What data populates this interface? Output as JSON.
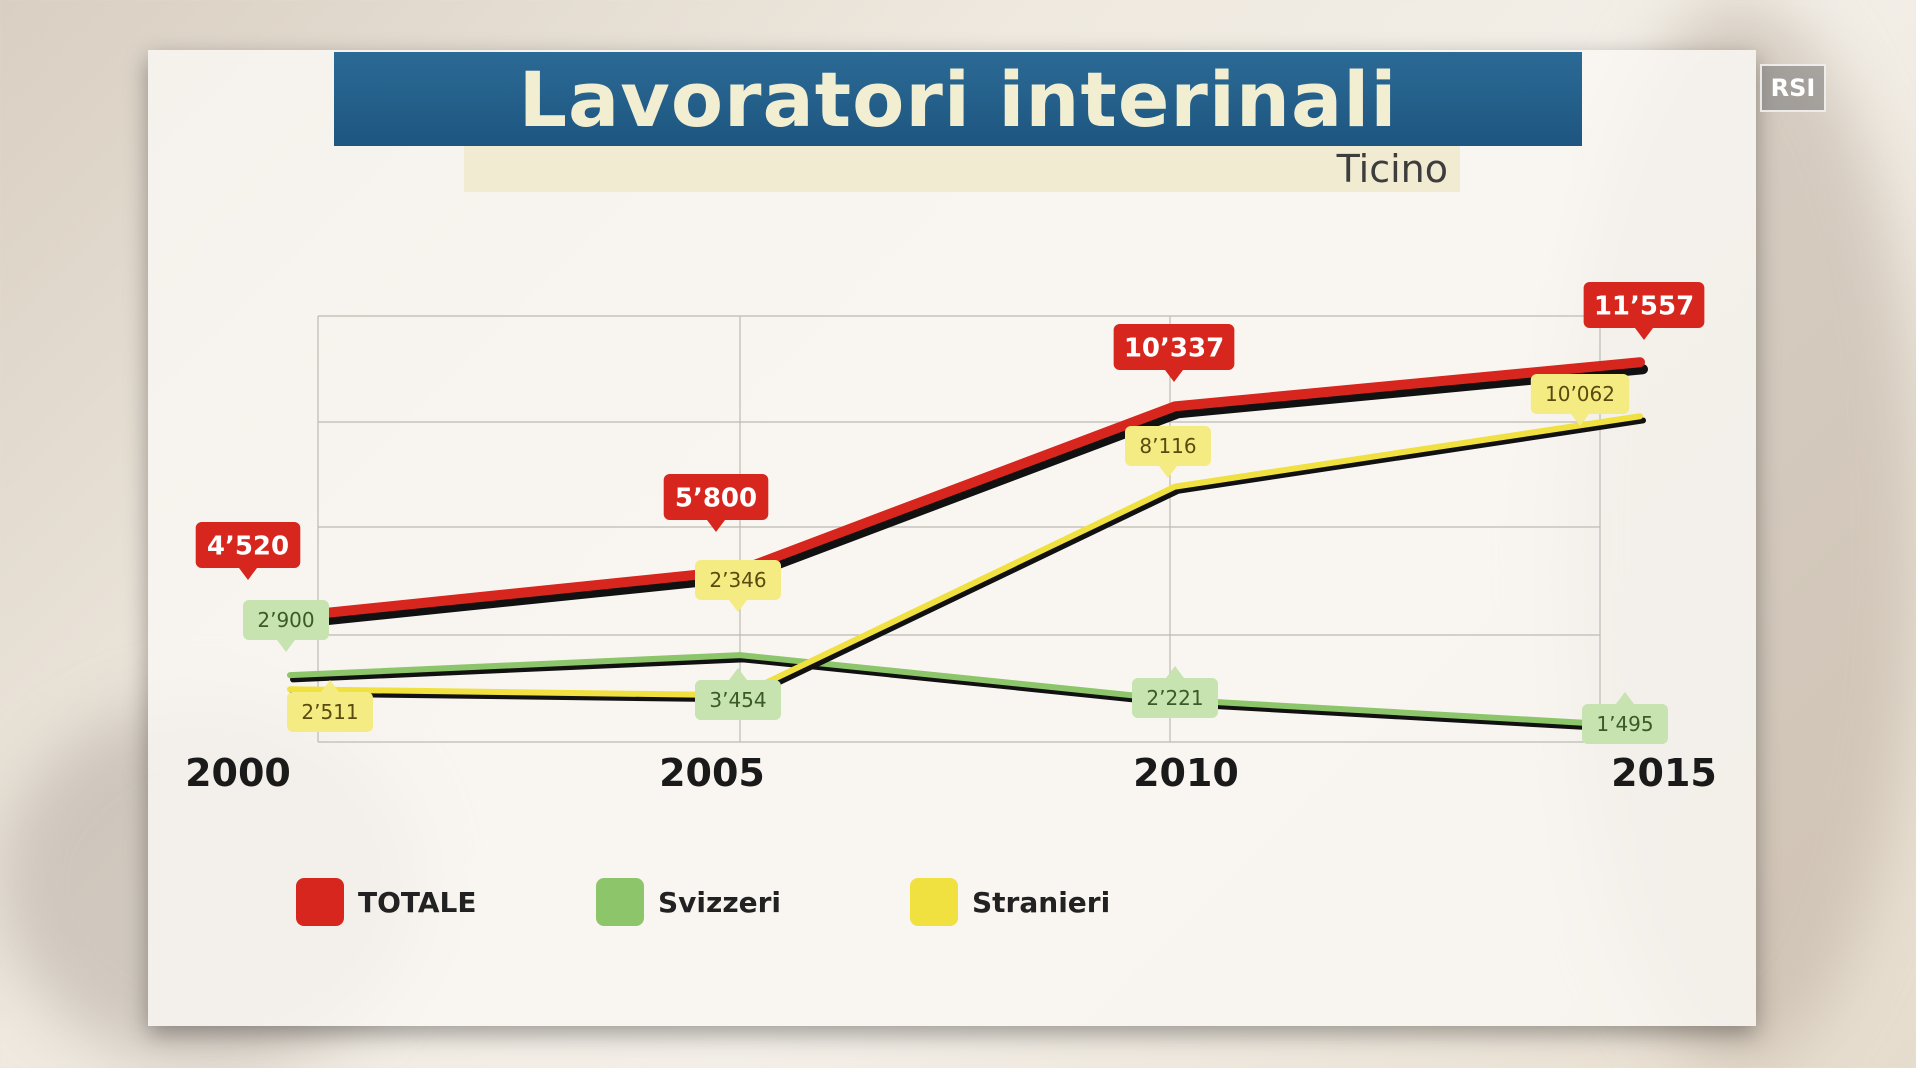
{
  "title": "Lavoratori interinali",
  "subtitle": "Ticino",
  "logo_text": "RSI",
  "colors": {
    "totale": "#d7261e",
    "svizzeri": "#8cc56a",
    "stranieri": "#f0e040",
    "title_bar": "#1f5a85"
  },
  "chart_data": {
    "type": "line",
    "title": "Lavoratori interinali",
    "subtitle": "Ticino",
    "x": [
      2000,
      2005,
      2010,
      2015
    ],
    "x_tick_labels": [
      "2000",
      "2005",
      "2010",
      "2015"
    ],
    "series": [
      {
        "name": "TOTALE",
        "color": "#d7261e",
        "values": [
          4520,
          5800,
          10337,
          11557
        ],
        "labels": [
          "4’520",
          "5’800",
          "10’337",
          "11’557"
        ]
      },
      {
        "name": "Svizzeri",
        "color": "#8cc56a",
        "values": [
          2900,
          3454,
          2221,
          1495
        ],
        "labels": [
          "2’900",
          "3’454",
          "2’221",
          "1’495"
        ]
      },
      {
        "name": "Stranieri",
        "color": "#f0e040",
        "values": [
          2511,
          2346,
          8116,
          10062
        ],
        "labels": [
          "2’511",
          "2’346",
          "8’116",
          "10’062"
        ]
      }
    ],
    "legend": [
      "TOTALE",
      "Svizzeri",
      "Stranieri"
    ],
    "legend_position": "bottom-left",
    "grid": true
  }
}
